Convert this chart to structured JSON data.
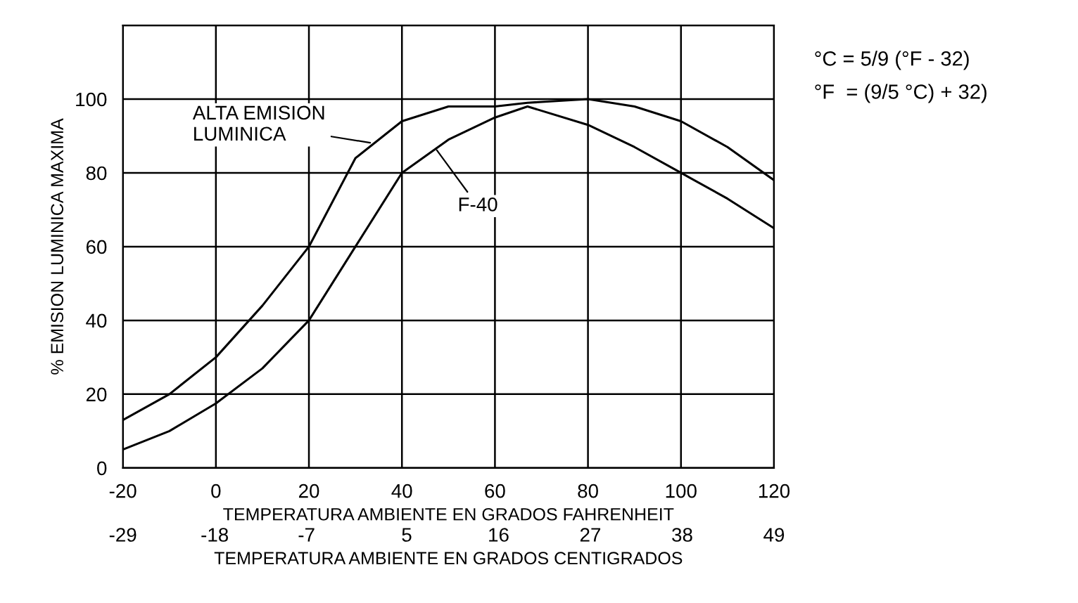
{
  "chart_data": {
    "type": "line",
    "xlabel": "TEMPERATURA AMBIENTE EN GRADOS FAHRENHEIT",
    "ylabel": "% EMISION LUMINICA MAXIMA",
    "x2label": "TEMPERATURA AMBIENTE EN GRADOS CENTIGRADOS",
    "x": [
      -20,
      -10,
      0,
      10,
      20,
      30,
      40,
      50,
      60,
      67,
      80,
      90,
      100,
      110,
      120
    ],
    "series": [
      {
        "color": "#000000",
        "values": [
          13,
          20,
          30,
          44,
          60,
          84,
          94,
          98,
          98,
          99,
          100,
          98,
          94,
          87,
          78
        ]
      },
      {
        "color": "#000000",
        "values": [
          5,
          10,
          17.5,
          27,
          40,
          60,
          80,
          89,
          95,
          98,
          93,
          87,
          80,
          73,
          65
        ]
      }
    ],
    "xlim": [
      -20,
      120
    ],
    "xticks": [
      -20,
      0,
      20,
      40,
      60,
      80,
      100,
      120
    ],
    "ylim": [
      0,
      120
    ],
    "yticks": [
      0,
      20,
      40,
      60,
      80,
      100
    ],
    "x2lim": [
      -29,
      49
    ],
    "x2ticks": [
      -29,
      -18,
      -7,
      5,
      16,
      27,
      38,
      49
    ],
    "grid": true,
    "marker": "none",
    "line_style": "solid",
    "annotations": [
      {
        "text": "ALTA EMISION\nLUMINICA",
        "x": 34,
        "y": 88
      },
      {
        "text": "F-40",
        "x": 47,
        "y": 87
      },
      "°C = 5/9 (°F - 32)",
      "°F  = (9/5 °C) + 32)"
    ]
  }
}
